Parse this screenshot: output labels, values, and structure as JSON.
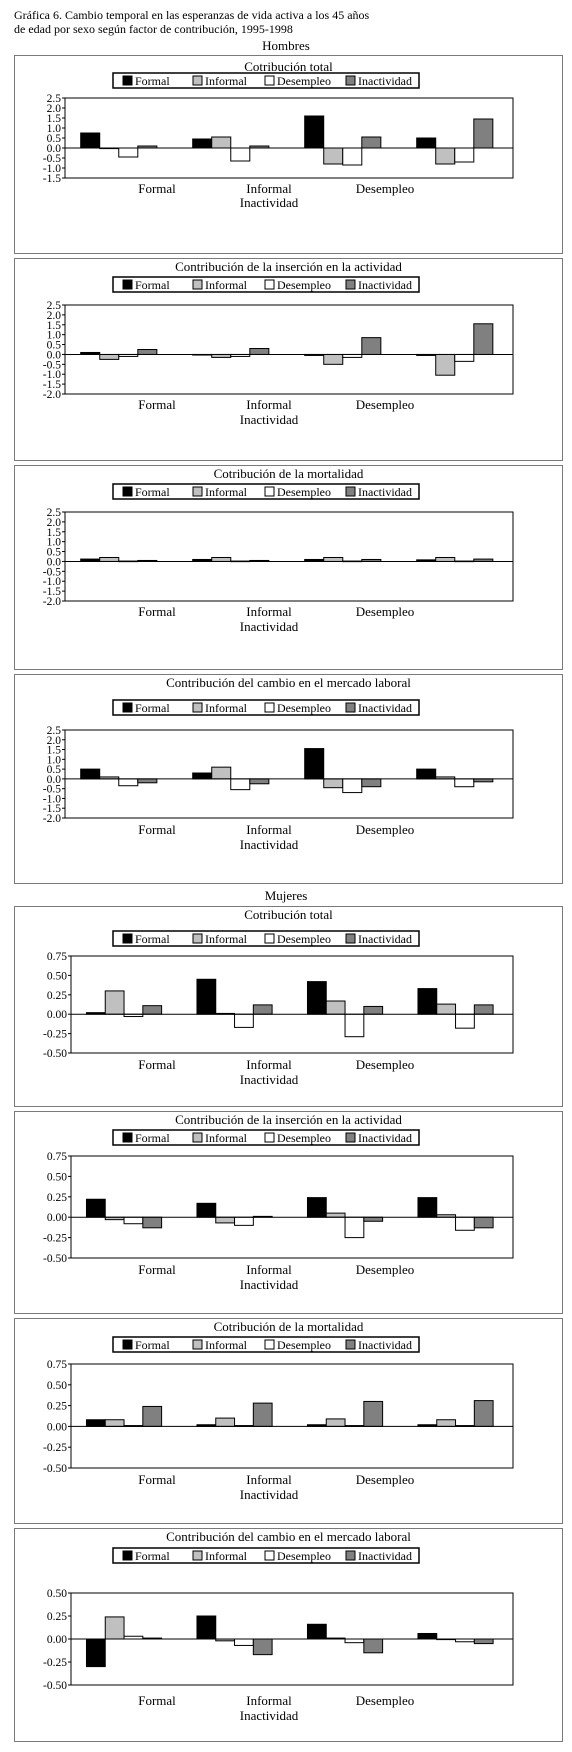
{
  "figure": {
    "title_line1": "Gráfica 6. Cambio temporal en las esperanzas de vida activa a los 45 años",
    "title_line2": "de edad por sexo según factor de contribución, 1995-1998"
  },
  "sections": {
    "hombres": "Hombres",
    "mujeres": "Mujeres"
  },
  "colors": {
    "Formal": "#000000",
    "Informal": "#c0c0c0",
    "Desempleo": "#ffffff",
    "Inactividad": "#808080"
  },
  "chart_data": [
    {
      "type": "bar",
      "group": "Hombres",
      "title": "Cotribución total",
      "categories": [
        "Formal",
        "Informal",
        "Desempleo",
        "Inactividad"
      ],
      "category_label_rows": [
        [
          "Formal",
          "Informal",
          "Desempleo"
        ],
        [
          "",
          "Inactividad",
          ""
        ]
      ],
      "ylim": [
        -1.5,
        2.5
      ],
      "yticks": [
        "2.5",
        "2.0",
        "1.5",
        "1.0",
        "0.5",
        "0.0",
        "-0.5",
        "-1.0",
        "-1.5"
      ],
      "legend": "top",
      "series": [
        {
          "name": "Formal",
          "values": [
            0.75,
            0.45,
            1.6,
            0.5
          ]
        },
        {
          "name": "Informal",
          "values": [
            0.0,
            0.55,
            -0.8,
            -0.8
          ]
        },
        {
          "name": "Desempleo",
          "values": [
            -0.45,
            -0.65,
            -0.85,
            -0.7
          ]
        },
        {
          "name": "Inactividad",
          "values": [
            0.1,
            0.1,
            0.55,
            1.45
          ]
        }
      ]
    },
    {
      "type": "bar",
      "group": "Hombres",
      "title": "Contribución de la inserción en la actividad",
      "categories": [
        "Formal",
        "Informal",
        "Desempleo",
        "Inactividad"
      ],
      "category_label_rows": [
        [
          "Formal",
          "Informal",
          "Desempleo"
        ],
        [
          "",
          "Inactividad",
          ""
        ]
      ],
      "ylim": [
        -2.0,
        2.5
      ],
      "yticks": [
        "2.5",
        "2.0",
        "1.5",
        "1.0",
        "0.5",
        "0.0",
        "-0.5",
        "-1.0",
        "-1.5",
        "-2.0"
      ],
      "legend": "top",
      "series": [
        {
          "name": "Formal",
          "values": [
            0.1,
            0.0,
            -0.05,
            -0.05
          ]
        },
        {
          "name": "Informal",
          "values": [
            -0.25,
            -0.15,
            -0.5,
            -1.05
          ]
        },
        {
          "name": "Desempleo",
          "values": [
            -0.1,
            -0.1,
            -0.15,
            -0.35
          ]
        },
        {
          "name": "Inactividad",
          "values": [
            0.25,
            0.3,
            0.85,
            1.55
          ]
        }
      ]
    },
    {
      "type": "bar",
      "group": "Hombres",
      "title": "Cotribución de la mortalidad",
      "categories": [
        "Formal",
        "Informal",
        "Desempleo",
        "Inactividad"
      ],
      "category_label_rows": [
        [
          "Formal",
          "Informal",
          "Desempleo"
        ],
        [
          "",
          "Inactividad",
          ""
        ]
      ],
      "ylim": [
        -2.0,
        2.5
      ],
      "yticks": [
        "2.5",
        "2.0",
        "1.5",
        "1.0",
        "0.5",
        "0.0",
        "-0.5",
        "-1.0",
        "-1.5",
        "-2.0"
      ],
      "legend": "top",
      "series": [
        {
          "name": "Formal",
          "values": [
            0.12,
            0.1,
            0.1,
            0.08
          ]
        },
        {
          "name": "Informal",
          "values": [
            0.2,
            0.2,
            0.2,
            0.2
          ]
        },
        {
          "name": "Desempleo",
          "values": [
            0.02,
            0.02,
            0.02,
            0.02
          ]
        },
        {
          "name": "Inactividad",
          "values": [
            0.05,
            0.05,
            0.1,
            0.12
          ]
        }
      ]
    },
    {
      "type": "bar",
      "group": "Hombres",
      "title": "Contribución del cambio en el mercado laboral",
      "categories": [
        "Formal",
        "Informal",
        "Desempleo",
        "Inactividad"
      ],
      "category_label_rows": [
        [
          "Formal",
          "Informal",
          "Desempleo"
        ],
        [
          "",
          "Inactividad",
          ""
        ]
      ],
      "ylim": [
        -2.0,
        2.5
      ],
      "yticks": [
        "2.5",
        "2.0",
        "1.5",
        "1.0",
        "0.5",
        "0.0",
        "-0.5",
        "-1.0",
        "-1.5",
        "-2.0"
      ],
      "legend": "top",
      "series": [
        {
          "name": "Formal",
          "values": [
            0.5,
            0.3,
            1.55,
            0.5
          ]
        },
        {
          "name": "Informal",
          "values": [
            0.1,
            0.6,
            -0.45,
            0.1
          ]
        },
        {
          "name": "Desempleo",
          "values": [
            -0.35,
            -0.55,
            -0.7,
            -0.4
          ]
        },
        {
          "name": "Inactividad",
          "values": [
            -0.2,
            -0.25,
            -0.4,
            -0.15
          ]
        }
      ]
    },
    {
      "type": "bar",
      "group": "Mujeres",
      "title": "Cotribución total",
      "categories": [
        "Formal",
        "Informal",
        "Desempleo",
        "Inactividad"
      ],
      "category_label_rows": [
        [
          "Formal",
          "Informal",
          "Desempleo"
        ],
        [
          "",
          "Inactividad",
          ""
        ]
      ],
      "ylim": [
        -0.5,
        0.75
      ],
      "yticks": [
        "0.75",
        "0.50",
        "0.25",
        "0.00",
        "-0.25",
        "-0.50"
      ],
      "legend": "top",
      "series": [
        {
          "name": "Formal",
          "values": [
            0.02,
            0.45,
            0.42,
            0.33
          ]
        },
        {
          "name": "Informal",
          "values": [
            0.3,
            0.01,
            0.17,
            0.13
          ]
        },
        {
          "name": "Desempleo",
          "values": [
            -0.03,
            -0.17,
            -0.29,
            -0.18
          ]
        },
        {
          "name": "Inactividad",
          "values": [
            0.11,
            0.12,
            0.1,
            0.12
          ]
        }
      ]
    },
    {
      "type": "bar",
      "group": "Mujeres",
      "title": "Contribución de la inserción en la actividad",
      "categories": [
        "Formal",
        "Informal",
        "Desempleo",
        "Inactividad"
      ],
      "category_label_rows": [
        [
          "Formal",
          "Informal",
          "Desempleo"
        ],
        [
          "",
          "Inactividad",
          ""
        ]
      ],
      "ylim": [
        -0.5,
        0.75
      ],
      "yticks": [
        "0.75",
        "0.50",
        "0.25",
        "0.00",
        "-0.25",
        "-0.50"
      ],
      "legend": "top",
      "series": [
        {
          "name": "Formal",
          "values": [
            0.22,
            0.17,
            0.24,
            0.24
          ]
        },
        {
          "name": "Informal",
          "values": [
            -0.03,
            -0.07,
            0.05,
            0.03
          ]
        },
        {
          "name": "Desempleo",
          "values": [
            -0.08,
            -0.1,
            -0.25,
            -0.16
          ]
        },
        {
          "name": "Inactividad",
          "values": [
            -0.13,
            0.01,
            -0.05,
            -0.13
          ]
        }
      ]
    },
    {
      "type": "bar",
      "group": "Mujeres",
      "title": "Cotribución de la mortalidad",
      "categories": [
        "Formal",
        "Informal",
        "Desempleo",
        "Inactividad"
      ],
      "category_label_rows": [
        [
          "Formal",
          "Informal",
          "Desempleo"
        ],
        [
          "",
          "Inactividad",
          ""
        ]
      ],
      "ylim": [
        -0.5,
        0.75
      ],
      "yticks": [
        "0.75",
        "0.50",
        "0.25",
        "0.00",
        "-0.25",
        "-0.50"
      ],
      "legend": "top",
      "series": [
        {
          "name": "Formal",
          "values": [
            0.08,
            0.02,
            0.02,
            0.02
          ]
        },
        {
          "name": "Informal",
          "values": [
            0.08,
            0.1,
            0.09,
            0.08
          ]
        },
        {
          "name": "Desempleo",
          "values": [
            0.01,
            0.01,
            0.01,
            0.01
          ]
        },
        {
          "name": "Inactividad",
          "values": [
            0.24,
            0.28,
            0.3,
            0.31
          ]
        }
      ]
    },
    {
      "type": "bar",
      "group": "Mujeres",
      "title": "Contribución del cambio en el mercado laboral",
      "categories": [
        "Formal",
        "Informal",
        "Desempleo",
        "Inactividad"
      ],
      "category_label_rows": [
        [
          "Formal",
          "Informal",
          "Desempleo"
        ],
        [
          "",
          "Inactividad",
          ""
        ]
      ],
      "ylim": [
        -0.5,
        0.5
      ],
      "yticks": [
        "0.50",
        "0.25",
        "0.00",
        "-0.25",
        "-0.50"
      ],
      "legend": "top",
      "series": [
        {
          "name": "Formal",
          "values": [
            -0.3,
            0.25,
            0.16,
            0.06
          ]
        },
        {
          "name": "Informal",
          "values": [
            0.24,
            -0.02,
            0.01,
            0.0
          ]
        },
        {
          "name": "Desempleo",
          "values": [
            0.03,
            -0.07,
            -0.04,
            -0.03
          ]
        },
        {
          "name": "Inactividad",
          "values": [
            0.01,
            -0.17,
            -0.15,
            -0.05
          ]
        }
      ]
    }
  ]
}
